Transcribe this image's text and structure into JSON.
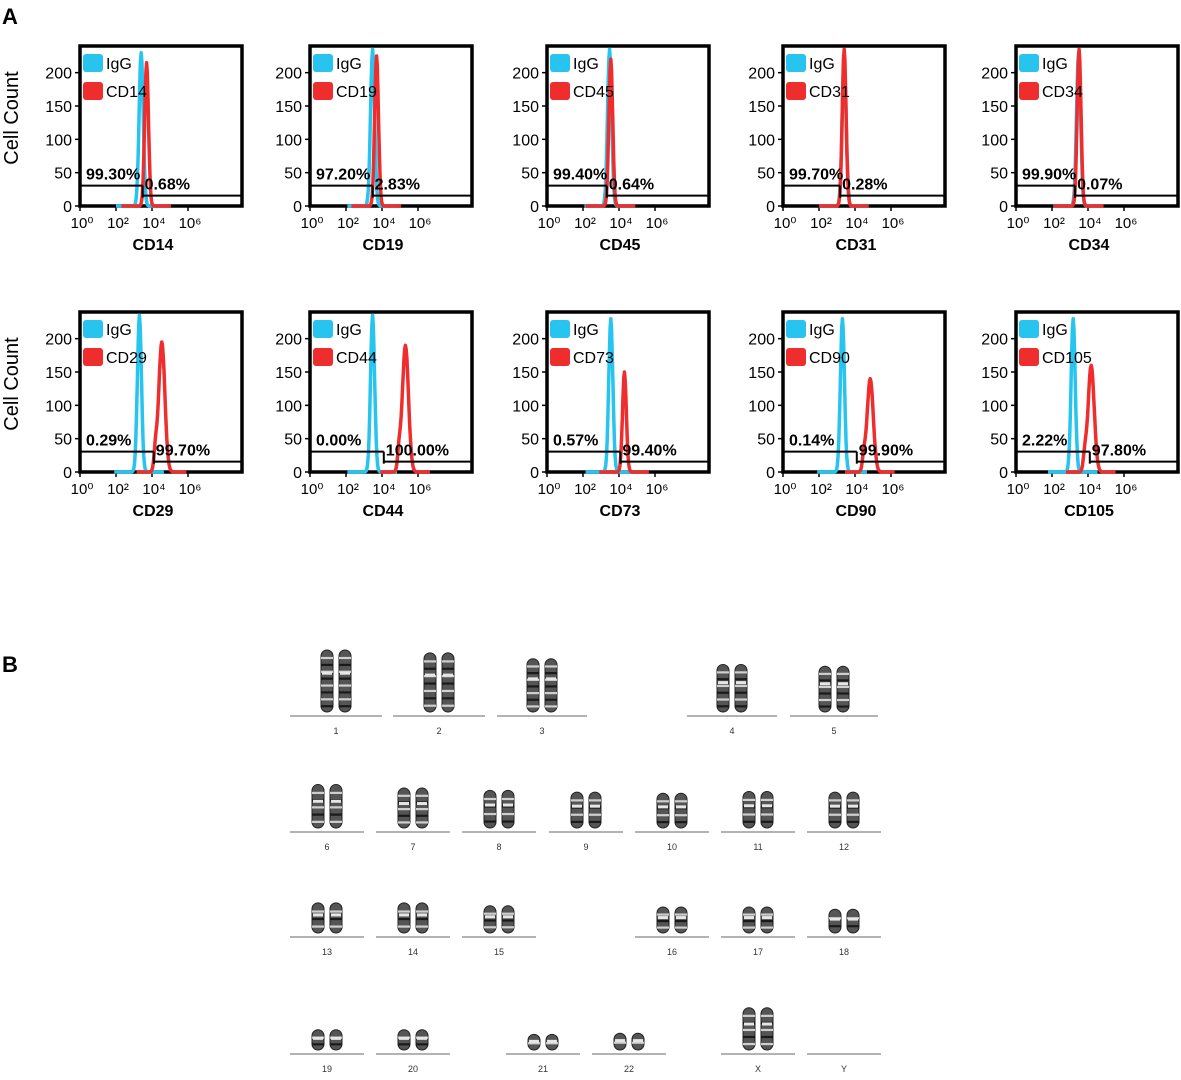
{
  "panels": {
    "a_letter": "A",
    "b_letter": "B"
  },
  "colors": {
    "igg": "#27C4F0",
    "marker": "#F02D2D"
  },
  "y_axis_label": "Cell Count",
  "chart_data": [
    {
      "type": "histogram",
      "xlabel": "CD14",
      "legend": [
        "IgG",
        "CD14"
      ],
      "x_scale": "log10",
      "xlim": [
        1,
        1000000000.0
      ],
      "ylim": [
        0,
        240
      ],
      "yticks": [
        0,
        50,
        100,
        150,
        200
      ],
      "xticks": [
        "10⁰",
        "10²",
        "10⁴",
        "10⁶"
      ],
      "igg_peak": {
        "x": 2500,
        "y": 230
      },
      "marker_peak": {
        "x": 5000,
        "y": 215
      },
      "gate_left": "99.30%",
      "gate_right": "0.68%"
    },
    {
      "type": "histogram",
      "xlabel": "CD19",
      "legend": [
        "IgG",
        "CD19"
      ],
      "x_scale": "log10",
      "xlim": [
        1,
        1000000000.0
      ],
      "ylim": [
        0,
        240
      ],
      "yticks": [
        0,
        50,
        100,
        150,
        200
      ],
      "xticks": [
        "10⁰",
        "10²",
        "10⁴",
        "10⁶"
      ],
      "igg_peak": {
        "x": 3000,
        "y": 235
      },
      "marker_peak": {
        "x": 5000,
        "y": 225
      },
      "gate_left": "97.20%",
      "gate_right": "2.83%"
    },
    {
      "type": "histogram",
      "xlabel": "CD45",
      "legend": [
        "IgG",
        "CD45"
      ],
      "x_scale": "log10",
      "xlim": [
        1,
        1000000000.0
      ],
      "ylim": [
        0,
        240
      ],
      "yticks": [
        0,
        50,
        100,
        150,
        200
      ],
      "xticks": [
        "10⁰",
        "10²",
        "10⁴",
        "10⁶"
      ],
      "igg_peak": {
        "x": 3000,
        "y": 235
      },
      "marker_peak": {
        "x": 3500,
        "y": 220
      },
      "gate_left": "99.40%",
      "gate_right": "0.64%"
    },
    {
      "type": "histogram",
      "xlabel": "CD31",
      "legend": [
        "IgG",
        "CD31"
      ],
      "x_scale": "log10",
      "xlim": [
        1,
        1000000000.0
      ],
      "ylim": [
        0,
        240
      ],
      "yticks": [
        0,
        50,
        100,
        150,
        200
      ],
      "xticks": [
        "10⁰",
        "10²",
        "10⁴",
        "10⁶"
      ],
      "igg_peak": {
        "x": 2500,
        "y": 215
      },
      "marker_peak": {
        "x": 2500,
        "y": 235
      },
      "gate_left": "99.70%",
      "gate_right": "0.28%"
    },
    {
      "type": "histogram",
      "xlabel": "CD34",
      "legend": [
        "IgG",
        "CD34"
      ],
      "x_scale": "log10",
      "xlim": [
        1,
        1000000000.0
      ],
      "ylim": [
        0,
        240
      ],
      "yticks": [
        0,
        50,
        100,
        150,
        200
      ],
      "xticks": [
        "10⁰",
        "10²",
        "10⁴",
        "10⁶"
      ],
      "igg_peak": {
        "x": 3000,
        "y": 230
      },
      "marker_peak": {
        "x": 3200,
        "y": 235
      },
      "gate_left": "99.90%",
      "gate_right": "0.07%"
    },
    {
      "type": "histogram",
      "xlabel": "CD29",
      "legend": [
        "IgG",
        "CD29"
      ],
      "x_scale": "log10",
      "xlim": [
        1,
        1000000000.0
      ],
      "ylim": [
        0,
        240
      ],
      "yticks": [
        0,
        50,
        100,
        150,
        200
      ],
      "xticks": [
        "10⁰",
        "10²",
        "10⁴",
        "10⁶"
      ],
      "igg_peak": {
        "x": 2000,
        "y": 235
      },
      "marker_peak": {
        "x": 35000,
        "y": 195
      },
      "gate_left": "0.29%",
      "gate_right": "99.70%"
    },
    {
      "type": "histogram",
      "xlabel": "CD44",
      "legend": [
        "IgG",
        "CD44"
      ],
      "x_scale": "log10",
      "xlim": [
        1,
        1000000000.0
      ],
      "ylim": [
        0,
        240
      ],
      "yticks": [
        0,
        50,
        100,
        150,
        200
      ],
      "xticks": [
        "10⁰",
        "10²",
        "10⁴",
        "10⁶"
      ],
      "igg_peak": {
        "x": 3000,
        "y": 235
      },
      "marker_peak": {
        "x": 200000,
        "y": 190
      },
      "gate_left": "0.00%",
      "gate_right": "100.00%"
    },
    {
      "type": "histogram",
      "xlabel": "CD73",
      "legend": [
        "IgG",
        "CD73"
      ],
      "x_scale": "log10",
      "xlim": [
        1,
        1000000000.0
      ],
      "ylim": [
        0,
        240
      ],
      "yticks": [
        0,
        50,
        100,
        150,
        200
      ],
      "xticks": [
        "10⁰",
        "10²",
        "10⁴",
        "10⁶"
      ],
      "igg_peak": {
        "x": 3500,
        "y": 230
      },
      "marker_peak": {
        "x": 20000,
        "y": 150
      },
      "gate_left": "0.57%",
      "gate_right": "99.40%"
    },
    {
      "type": "histogram",
      "xlabel": "CD90",
      "legend": [
        "IgG",
        "CD90"
      ],
      "x_scale": "log10",
      "xlim": [
        1,
        1000000000.0
      ],
      "ylim": [
        0,
        240
      ],
      "yticks": [
        0,
        50,
        100,
        150,
        200
      ],
      "xticks": [
        "10⁰",
        "10²",
        "10⁴",
        "10⁶"
      ],
      "igg_peak": {
        "x": 2000,
        "y": 230
      },
      "marker_peak": {
        "x": 70000,
        "y": 140
      },
      "gate_left": "0.14%",
      "gate_right": "99.90%"
    },
    {
      "type": "histogram",
      "xlabel": "CD105",
      "legend": [
        "IgG",
        "CD105"
      ],
      "x_scale": "log10",
      "xlim": [
        1,
        1000000000.0
      ],
      "ylim": [
        0,
        240
      ],
      "yticks": [
        0,
        50,
        100,
        150,
        200
      ],
      "xticks": [
        "10⁰",
        "10²",
        "10⁴",
        "10⁶"
      ],
      "igg_peak": {
        "x": 1500,
        "y": 230
      },
      "marker_peak": {
        "x": 15000,
        "y": 160
      },
      "gate_left": "2.22%",
      "gate_right": "97.80%"
    }
  ],
  "karyotype": {
    "rows": [
      {
        "groups": [
          {
            "label": "1",
            "size": 1.0
          },
          {
            "label": "2",
            "size": 0.95
          },
          {
            "label": "3",
            "size": 0.85
          },
          {
            "label": "4",
            "size": 0.75
          },
          {
            "label": "5",
            "size": 0.72
          }
        ]
      },
      {
        "groups": [
          {
            "label": "6",
            "size": 0.68
          },
          {
            "label": "7",
            "size": 0.62
          },
          {
            "label": "8",
            "size": 0.58
          },
          {
            "label": "9",
            "size": 0.55
          },
          {
            "label": "10",
            "size": 0.53
          },
          {
            "label": "11",
            "size": 0.56
          },
          {
            "label": "12",
            "size": 0.55
          }
        ]
      },
      {
        "groups": [
          {
            "label": "13",
            "size": 0.45
          },
          {
            "label": "14",
            "size": 0.45
          },
          {
            "label": "15",
            "size": 0.4
          },
          {
            "label": "16",
            "size": 0.38
          },
          {
            "label": "17",
            "size": 0.38
          },
          {
            "label": "18",
            "size": 0.34
          }
        ]
      },
      {
        "groups": [
          {
            "label": "19",
            "size": 0.28
          },
          {
            "label": "20",
            "size": 0.28
          },
          {
            "label": "21",
            "size": 0.2
          },
          {
            "label": "22",
            "size": 0.22
          },
          {
            "label": "X",
            "size": 0.66
          },
          {
            "label": "Y",
            "size": 0
          }
        ]
      }
    ]
  }
}
